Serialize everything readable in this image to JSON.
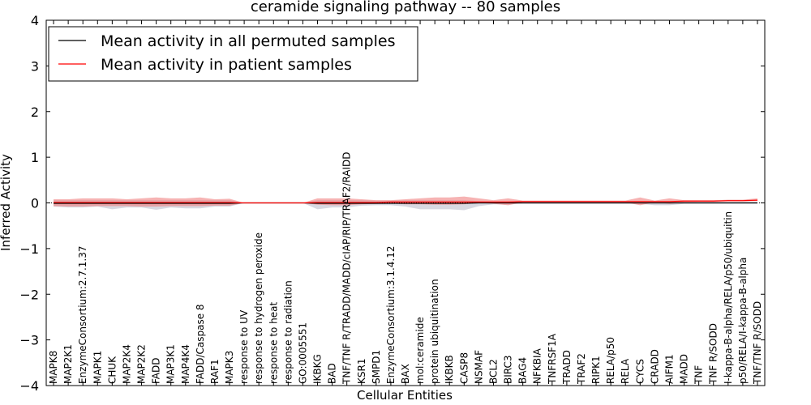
{
  "chart_data": {
    "type": "line",
    "title": "ceramide signaling pathway -- 80 samples",
    "xlabel": "Cellular Entities",
    "ylabel": "Inferred Activity",
    "ylim": [
      -4,
      4
    ],
    "yticks": [
      -4,
      -3,
      -2,
      -1,
      0,
      1,
      2,
      3,
      4
    ],
    "ytick_labels": [
      "−4",
      "−3",
      "−2",
      "−1",
      "0",
      "1",
      "2",
      "3",
      "4"
    ],
    "legend_position": "top-left",
    "categories": [
      "MAPK8",
      "MAP2K1",
      "EnzymeConsortium:2.7.1.37",
      "MAPK1",
      "CHUK",
      "MAP2K4",
      "MAP2K2",
      "FADD",
      "MAP3K1",
      "MAP4K4",
      "FADD/Caspase 8",
      "RAF1",
      "MAPK3",
      "response to UV",
      "response to hydrogen peroxide",
      "response to heat",
      "response to radiation",
      "GO:0005551",
      "IKBKG",
      "BAD",
      "TNF/TNF R/TRADD/MADD/cIAP/RIP/TRAF2/RAIDD",
      "KSR1",
      "SMPD1",
      "EnzymeConsortium:3.1.4.12",
      "BAX",
      "mol:ceramide",
      "protein ubiquitination",
      "IKBKB",
      "CASP8",
      "NSMAF",
      "BCL2",
      "BIRC3",
      "BAG4",
      "NFKBIA",
      "TNFRSF1A",
      "TRADD",
      "TRAF2",
      "RIPK1",
      "RELA/p50",
      "RELA",
      "CYCS",
      "CRADD",
      "AIFM1",
      "MADD",
      "TNF",
      "TNF R/SODD",
      "I-kappa-B-alpha/RELA/p50/ubiquitin",
      "p50/RELA/I-kappa-B-alpha",
      "TNF/TNF R/SODD"
    ],
    "series": [
      {
        "name": "Mean activity in all permuted samples",
        "color": "#000000",
        "values": [
          -0.01,
          -0.01,
          -0.01,
          -0.01,
          -0.01,
          -0.01,
          -0.01,
          -0.01,
          -0.01,
          -0.01,
          -0.01,
          -0.01,
          -0.01,
          0,
          0,
          0,
          0,
          0,
          -0.01,
          -0.01,
          -0.01,
          -0.01,
          -0.01,
          -0.01,
          -0.01,
          -0.01,
          -0.01,
          -0.01,
          -0.01,
          0,
          0,
          0,
          0,
          0,
          0,
          0,
          0,
          0,
          0,
          0,
          0,
          0,
          0,
          0,
          0,
          0,
          0,
          0,
          0
        ],
        "band": {
          "color": "#b8b8c8",
          "lower": [
            -0.08,
            -0.1,
            -0.1,
            -0.08,
            -0.14,
            -0.1,
            -0.1,
            -0.15,
            -0.1,
            -0.12,
            -0.12,
            -0.08,
            -0.08,
            0,
            0,
            0,
            0,
            0,
            -0.14,
            -0.1,
            -0.1,
            -0.06,
            -0.05,
            -0.05,
            -0.08,
            -0.14,
            -0.14,
            -0.14,
            -0.16,
            -0.07,
            -0.03,
            -0.03,
            -0.02,
            -0.02,
            -0.02,
            -0.02,
            -0.02,
            -0.02,
            -0.02,
            -0.02,
            -0.02,
            -0.05,
            -0.05,
            -0.02,
            -0.02,
            -0.02,
            -0.02,
            -0.02,
            -0.02
          ],
          "upper": [
            0.06,
            0.06,
            0.06,
            0.06,
            0.06,
            0.06,
            0.06,
            0.06,
            0.06,
            0.06,
            0.06,
            0.06,
            0.06,
            0,
            0,
            0,
            0,
            0,
            0.06,
            0.06,
            0.06,
            0.06,
            0.05,
            0.05,
            0.06,
            0.06,
            0.06,
            0.06,
            0.06,
            0.04,
            0.03,
            0.03,
            0.02,
            0.02,
            0.02,
            0.02,
            0.02,
            0.02,
            0.02,
            0.02,
            0.02,
            0.03,
            0.03,
            0.02,
            0.02,
            0.02,
            0.02,
            0.02,
            0.02
          ]
        }
      },
      {
        "name": "Mean activity in patient samples",
        "color": "#ff0000",
        "values": [
          0.01,
          0.01,
          0.01,
          0.01,
          0.01,
          0.01,
          0.01,
          0.01,
          0.01,
          0.01,
          0.01,
          0.01,
          0.01,
          0,
          0,
          0,
          0,
          0,
          0.01,
          0.01,
          0.01,
          0.01,
          0.01,
          0.02,
          0.02,
          0.02,
          0.02,
          0.02,
          0.02,
          0.02,
          0.02,
          0.02,
          0.03,
          0.03,
          0.03,
          0.03,
          0.03,
          0.03,
          0.03,
          0.03,
          0.03,
          0.03,
          0.03,
          0.04,
          0.04,
          0.04,
          0.05,
          0.05,
          0.06
        ],
        "band": {
          "color": "#f08080",
          "lower": [
            -0.07,
            -0.08,
            -0.08,
            -0.07,
            -0.07,
            -0.07,
            -0.08,
            -0.08,
            -0.07,
            -0.07,
            -0.07,
            -0.06,
            -0.06,
            0,
            0,
            0,
            0,
            0,
            -0.04,
            -0.05,
            -0.05,
            -0.03,
            -0.02,
            -0.01,
            -0.03,
            -0.03,
            -0.04,
            -0.04,
            -0.03,
            0,
            -0.02,
            -0.05,
            0.01,
            0.01,
            0.01,
            0.01,
            0.01,
            0.01,
            0.01,
            0.01,
            -0.05,
            0.01,
            -0.02,
            0.01,
            0.02,
            0.02,
            0.03,
            0.03,
            0.04
          ],
          "upper": [
            0.08,
            0.08,
            0.1,
            0.1,
            0.1,
            0.08,
            0.1,
            0.12,
            0.1,
            0.1,
            0.12,
            0.08,
            0.09,
            0,
            0,
            0,
            0,
            0,
            0.1,
            0.1,
            0.1,
            0.08,
            0.06,
            0.06,
            0.08,
            0.1,
            0.12,
            0.12,
            0.14,
            0.1,
            0.06,
            0.1,
            0.05,
            0.05,
            0.05,
            0.05,
            0.05,
            0.05,
            0.05,
            0.05,
            0.12,
            0.05,
            0.1,
            0.06,
            0.06,
            0.06,
            0.07,
            0.07,
            0.1
          ]
        }
      }
    ]
  }
}
